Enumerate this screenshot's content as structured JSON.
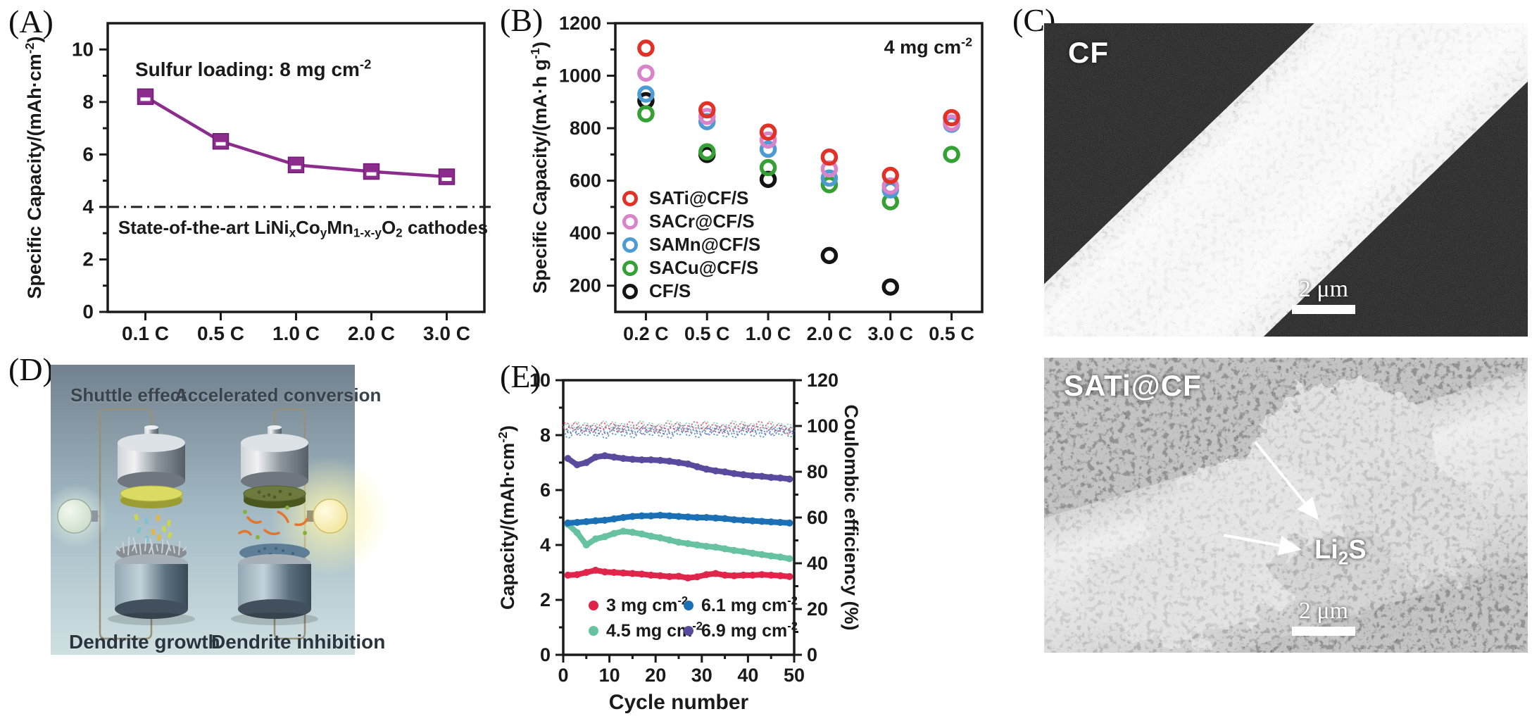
{
  "panels": {
    "a": {
      "label": "(A)"
    },
    "b": {
      "label": "(B)"
    },
    "c": {
      "label": "(C)",
      "top": {
        "tag": "CF",
        "scalebar": "2 μm"
      },
      "bottom": {
        "tag": "SATi@CF",
        "scalebar": "2 μm",
        "annotation": {
          "base": "Li",
          "sub": "2",
          "end": "S"
        }
      }
    },
    "d": {
      "label": "(D)",
      "captions": {
        "top_left": "Shuttle effect",
        "top_right": "Accelerated conversion",
        "bottom_left": "Dendrite growth",
        "bottom_right": "Dendrite inhibition"
      }
    },
    "e": {
      "label": "(E)"
    }
  },
  "chart_data": [
    {
      "panel": "A",
      "type": "line",
      "categories": [
        "0.1 C",
        "0.5 C",
        "1.0 C",
        "2.0 C",
        "3.0 C"
      ],
      "values": [
        8.2,
        6.5,
        5.6,
        5.35,
        5.15
      ],
      "series_color": "#8c2d8e",
      "axis_color": "#1a1a1a",
      "ylabel_rich": [
        [
          "Specific Capacity/(mAh·cm",
          "n"
        ],
        [
          "-2",
          "sup"
        ],
        [
          ")",
          "n"
        ]
      ],
      "ylim": [
        0,
        11
      ],
      "yticks": [
        0,
        2,
        4,
        6,
        8,
        10
      ],
      "annotation_rich": [
        [
          "Sulfur loading: 8 mg cm",
          "n"
        ],
        [
          "-2",
          "sup"
        ]
      ],
      "ref_line": {
        "y": 4,
        "label_rich": [
          [
            "State-of-the-art LiNi",
            "n"
          ],
          [
            "x",
            "sub"
          ],
          [
            "Co",
            "n"
          ],
          [
            "y",
            "sub"
          ],
          [
            "Mn",
            "n"
          ],
          [
            "1-x-y",
            "sub"
          ],
          [
            "O",
            "n"
          ],
          [
            "2",
            "sub"
          ],
          [
            " cathodes",
            "n"
          ]
        ]
      }
    },
    {
      "panel": "B",
      "type": "scatter",
      "categories": [
        "0.2 C",
        "0.5 C",
        "1.0 C",
        "2.0 C",
        "3.0 C",
        "0.5 C"
      ],
      "series": [
        {
          "name": "SATi@CF/S",
          "color": "#e13228",
          "values": [
            1105,
            870,
            785,
            690,
            620,
            840
          ]
        },
        {
          "name": "SACr@CF/S",
          "color": "#d983c9",
          "values": [
            1010,
            845,
            755,
            645,
            580,
            820
          ]
        },
        {
          "name": "SAMn@CF/S",
          "color": "#4d9bd5",
          "values": [
            930,
            825,
            720,
            610,
            565,
            815
          ]
        },
        {
          "name": "SACu@CF/S",
          "color": "#35a135",
          "values": [
            855,
            710,
            650,
            585,
            520,
            700
          ]
        },
        {
          "name": "CF/S",
          "color": "#141414",
          "values": [
            905,
            700,
            605,
            315,
            195,
            null
          ]
        }
      ],
      "ylabel_rich": [
        [
          "Specific Capacity/(mA·h g",
          "n"
        ],
        [
          "-1",
          "sup"
        ],
        [
          ")",
          "n"
        ]
      ],
      "ylim": [
        100,
        1200
      ],
      "yticks": [
        200,
        400,
        600,
        800,
        1000,
        1200
      ],
      "annotation_rich": [
        [
          "4 mg cm",
          "n"
        ],
        [
          "-2",
          "sup"
        ]
      ]
    },
    {
      "panel": "E",
      "type": "scatter",
      "xlabel": "Cycle number",
      "xlim": [
        0,
        50
      ],
      "xticks": [
        0,
        10,
        20,
        30,
        40,
        50
      ],
      "x": [
        1,
        3,
        5,
        7,
        9,
        11,
        13,
        15,
        17,
        19,
        21,
        23,
        25,
        27,
        29,
        31,
        33,
        35,
        37,
        39,
        41,
        43,
        45,
        47,
        49
      ],
      "ylabel_left_rich": [
        [
          "Capacity/(mAh·cm",
          "n"
        ],
        [
          "-2",
          "sup"
        ],
        [
          ")",
          "n"
        ]
      ],
      "ylabel_right": "Coulombic efficiency (%)",
      "ylim_left": [
        0,
        10
      ],
      "yticks_left": [
        0,
        2,
        4,
        6,
        8,
        10
      ],
      "ylim_right": [
        0,
        120
      ],
      "yticks_right": [
        0,
        20,
        40,
        60,
        80,
        100,
        120
      ],
      "series": [
        {
          "name_rich": [
            [
              "3 mg cm",
              "n"
            ],
            [
              "-2",
              "sup"
            ]
          ],
          "color": "#e0254b",
          "capacity": [
            2.9,
            2.92,
            3.0,
            3.08,
            3.02,
            3.0,
            2.98,
            2.96,
            2.94,
            2.9,
            2.88,
            2.85,
            2.86,
            2.8,
            2.84,
            2.92,
            2.96,
            2.9,
            2.88,
            2.9,
            2.9,
            2.92,
            2.9,
            2.88,
            2.85
          ],
          "coulombic_efficiency": [
            99.2,
            99.6,
            99.4,
            99.8,
            99.5,
            99.7,
            99.4,
            99.6,
            99.8,
            99.5,
            99.6,
            99.4,
            99.7,
            99.5,
            99.6,
            99.8,
            99.5,
            99.7,
            99.4,
            99.6,
            99.5,
            99.7,
            99.6,
            99.4,
            98.6
          ]
        },
        {
          "name_rich": [
            [
              "4.5 mg cm",
              "n"
            ],
            [
              "-2",
              "sup"
            ]
          ],
          "color": "#66c2a0",
          "capacity": [
            4.75,
            4.45,
            4.0,
            4.22,
            4.3,
            4.42,
            4.5,
            4.46,
            4.4,
            4.32,
            4.26,
            4.18,
            4.1,
            4.05,
            4.0,
            3.95,
            3.92,
            3.86,
            3.8,
            3.76,
            3.7,
            3.65,
            3.6,
            3.56,
            3.5
          ],
          "coulombic_efficiency": [
            100.2,
            99.8,
            100.0,
            100.3,
            99.9,
            100.1,
            100.0,
            99.8,
            100.2,
            100.0,
            99.9,
            100.1,
            100.0,
            100.2,
            99.8,
            100.0,
            100.1,
            99.9,
            100.0,
            100.2,
            99.9,
            100.1,
            100.0,
            99.8,
            100.0
          ]
        },
        {
          "name_rich": [
            [
              "6.1 mg cm",
              "n"
            ],
            [
              "-2",
              "sup"
            ]
          ],
          "color": "#1a6fb5",
          "capacity": [
            4.8,
            4.82,
            4.85,
            4.88,
            4.9,
            4.95,
            5.0,
            5.04,
            5.06,
            5.06,
            5.08,
            5.06,
            5.04,
            5.02,
            5.0,
            5.0,
            4.98,
            4.96,
            4.92,
            4.9,
            4.88,
            4.86,
            4.84,
            4.82,
            4.8
          ],
          "coulombic_efficiency": [
            96.8,
            97.2,
            97.0,
            97.3,
            96.9,
            97.1,
            97.0,
            96.8,
            97.2,
            97.0,
            97.1,
            96.9,
            97.0,
            97.2,
            96.9,
            97.0,
            97.1,
            96.9,
            97.2,
            97.0,
            96.9,
            97.1,
            97.0,
            97.2,
            96.9
          ]
        },
        {
          "name_rich": [
            [
              "6.9 mg cm",
              "n"
            ],
            [
              "-2",
              "sup"
            ]
          ],
          "color": "#5a4a9d",
          "capacity": [
            7.15,
            6.92,
            7.0,
            7.2,
            7.25,
            7.2,
            7.15,
            7.12,
            7.1,
            7.1,
            7.08,
            7.05,
            7.0,
            6.95,
            6.85,
            6.76,
            6.7,
            6.66,
            6.6,
            6.56,
            6.52,
            6.5,
            6.46,
            6.44,
            6.4
          ],
          "coulombic_efficiency": [
            98.4,
            98.1,
            98.3,
            98.0,
            98.4,
            98.2,
            98.3,
            98.1,
            98.4,
            98.2,
            98.0,
            98.3,
            98.2,
            98.4,
            98.1,
            98.3,
            98.0,
            98.2,
            98.3,
            98.1,
            98.4,
            98.2,
            98.0,
            98.3,
            98.1
          ]
        }
      ]
    }
  ]
}
